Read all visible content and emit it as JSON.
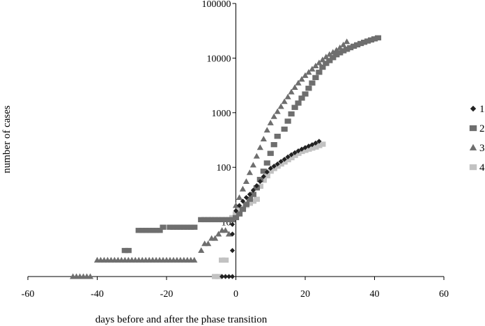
{
  "chart_data": {
    "type": "scatter",
    "title": "",
    "xlabel": "days before and after the phase transition",
    "ylabel": "number of cases",
    "xlim": [
      -60,
      60
    ],
    "x_ticks": [
      -60,
      -40,
      -20,
      0,
      20,
      40,
      60
    ],
    "x_tick_labels": [
      "-60",
      "-40",
      "-20",
      "0",
      "20",
      "40",
      "60"
    ],
    "y_scale": "log",
    "ylim": [
      1,
      100000
    ],
    "y_ticks": [
      10,
      100,
      1000,
      10000,
      100000
    ],
    "y_tick_labels": [
      "10",
      "100",
      "1000",
      "10000",
      "100000"
    ],
    "grid": false,
    "legend": "right",
    "series": [
      {
        "name": "1",
        "marker": "diamond",
        "color": "#222222",
        "points": [
          [
            -4,
            1
          ],
          [
            -3,
            1
          ],
          [
            -2,
            1
          ],
          [
            -1,
            1
          ],
          [
            -1,
            3
          ],
          [
            -1,
            6
          ],
          [
            -1,
            9
          ],
          [
            0,
            16
          ],
          [
            1,
            20
          ],
          [
            2,
            24
          ],
          [
            3,
            28
          ],
          [
            4,
            32
          ],
          [
            5,
            38
          ],
          [
            6,
            46
          ],
          [
            7,
            55
          ],
          [
            8,
            68
          ],
          [
            9,
            82
          ],
          [
            10,
            96
          ],
          [
            11,
            105
          ],
          [
            12,
            115
          ],
          [
            13,
            128
          ],
          [
            14,
            140
          ],
          [
            15,
            155
          ],
          [
            16,
            170
          ],
          [
            17,
            185
          ],
          [
            18,
            200
          ],
          [
            19,
            215
          ],
          [
            20,
            230
          ],
          [
            21,
            245
          ],
          [
            22,
            260
          ],
          [
            23,
            278
          ],
          [
            24,
            300
          ]
        ]
      },
      {
        "name": "2",
        "marker": "square",
        "color": "#6e6e6e",
        "points": [
          [
            -32,
            3
          ],
          [
            -31,
            3
          ],
          [
            -28,
            7
          ],
          [
            -27,
            7
          ],
          [
            -26,
            7
          ],
          [
            -25,
            7
          ],
          [
            -24,
            7
          ],
          [
            -23,
            7
          ],
          [
            -22,
            7
          ],
          [
            -21,
            8
          ],
          [
            -19,
            8
          ],
          [
            -18,
            8
          ],
          [
            -17,
            8
          ],
          [
            -16,
            8
          ],
          [
            -15,
            8
          ],
          [
            -14,
            8
          ],
          [
            -13,
            8
          ],
          [
            -12,
            8
          ],
          [
            -10,
            11
          ],
          [
            -9,
            11
          ],
          [
            -8,
            11
          ],
          [
            -7,
            11
          ],
          [
            -6,
            11
          ],
          [
            -5,
            11
          ],
          [
            -4,
            11
          ],
          [
            -3,
            11
          ],
          [
            -2,
            11
          ],
          [
            -1,
            11
          ],
          [
            0,
            12
          ],
          [
            1,
            14
          ],
          [
            2,
            17
          ],
          [
            3,
            21
          ],
          [
            4,
            26
          ],
          [
            5,
            32
          ],
          [
            6,
            42
          ],
          [
            7,
            60
          ],
          [
            8,
            85
          ],
          [
            9,
            120
          ],
          [
            10,
            180
          ],
          [
            11,
            260
          ],
          [
            12,
            370
          ],
          [
            14,
            500
          ],
          [
            15,
            700
          ],
          [
            16,
            950
          ],
          [
            17,
            1250
          ],
          [
            18,
            1500
          ],
          [
            19,
            1850
          ],
          [
            20,
            2200
          ],
          [
            21,
            2800
          ],
          [
            22,
            3500
          ],
          [
            23,
            4400
          ],
          [
            24,
            5500
          ],
          [
            25,
            6800
          ],
          [
            26,
            8000
          ],
          [
            27,
            9000
          ],
          [
            28,
            10200
          ],
          [
            29,
            11500
          ],
          [
            30,
            12500
          ],
          [
            31,
            13600
          ],
          [
            32,
            14500
          ],
          [
            33,
            15500
          ],
          [
            34,
            16500
          ],
          [
            35,
            17500
          ],
          [
            36,
            18500
          ],
          [
            37,
            19500
          ],
          [
            38,
            20500
          ],
          [
            39,
            21500
          ],
          [
            40,
            22500
          ],
          [
            41,
            23500
          ]
        ]
      },
      {
        "name": "3",
        "marker": "triangle",
        "color": "#6e6e6e",
        "points": [
          [
            -47,
            1
          ],
          [
            -46,
            1
          ],
          [
            -45,
            1
          ],
          [
            -44,
            1
          ],
          [
            -43,
            1
          ],
          [
            -42,
            1
          ],
          [
            -40,
            2
          ],
          [
            -39,
            2
          ],
          [
            -38,
            2
          ],
          [
            -37,
            2
          ],
          [
            -36,
            2
          ],
          [
            -35,
            2
          ],
          [
            -34,
            2
          ],
          [
            -33,
            2
          ],
          [
            -32,
            2
          ],
          [
            -31,
            2
          ],
          [
            -30,
            2
          ],
          [
            -29,
            2
          ],
          [
            -28,
            2
          ],
          [
            -27,
            2
          ],
          [
            -26,
            2
          ],
          [
            -25,
            2
          ],
          [
            -24,
            2
          ],
          [
            -23,
            2
          ],
          [
            -22,
            2
          ],
          [
            -21,
            2
          ],
          [
            -20,
            2
          ],
          [
            -19,
            2
          ],
          [
            -18,
            2
          ],
          [
            -17,
            2
          ],
          [
            -16,
            2
          ],
          [
            -15,
            2
          ],
          [
            -14,
            2
          ],
          [
            -13,
            2
          ],
          [
            -12,
            2
          ],
          [
            -10,
            3
          ],
          [
            -9,
            4
          ],
          [
            -8,
            4
          ],
          [
            -7,
            5
          ],
          [
            -6,
            5
          ],
          [
            -5,
            6
          ],
          [
            -4,
            7
          ],
          [
            -3,
            7
          ],
          [
            -2,
            6
          ],
          [
            0,
            20
          ],
          [
            1,
            28
          ],
          [
            2,
            40
          ],
          [
            3,
            55
          ],
          [
            4,
            80
          ],
          [
            5,
            110
          ],
          [
            6,
            160
          ],
          [
            7,
            230
          ],
          [
            8,
            330
          ],
          [
            9,
            480
          ],
          [
            10,
            650
          ],
          [
            11,
            850
          ],
          [
            12,
            1050
          ],
          [
            13,
            1300
          ],
          [
            14,
            1600
          ],
          [
            15,
            1950
          ],
          [
            16,
            2400
          ],
          [
            17,
            2900
          ],
          [
            18,
            3500
          ],
          [
            19,
            4100
          ],
          [
            20,
            4800
          ],
          [
            21,
            5500
          ],
          [
            22,
            6300
          ],
          [
            23,
            7200
          ],
          [
            24,
            8200
          ],
          [
            25,
            9300
          ],
          [
            26,
            10500
          ],
          [
            27,
            11700
          ],
          [
            28,
            12800
          ],
          [
            29,
            14000
          ],
          [
            30,
            15500
          ],
          [
            31,
            17500
          ],
          [
            32,
            20000
          ]
        ]
      },
      {
        "name": "4",
        "marker": "square",
        "color": "#c2c2c2",
        "points": [
          [
            -6,
            1
          ],
          [
            -5,
            1
          ],
          [
            -4,
            2
          ],
          [
            -3,
            2
          ],
          [
            -1,
            12
          ],
          [
            0,
            14
          ],
          [
            1,
            16
          ],
          [
            2,
            18
          ],
          [
            3,
            20
          ],
          [
            4,
            22
          ],
          [
            5,
            24
          ],
          [
            6,
            26
          ],
          [
            7,
            45
          ],
          [
            8,
            58
          ],
          [
            9,
            70
          ],
          [
            10,
            85
          ],
          [
            11,
            95
          ],
          [
            12,
            105
          ],
          [
            13,
            115
          ],
          [
            14,
            125
          ],
          [
            15,
            138
          ],
          [
            16,
            150
          ],
          [
            17,
            165
          ],
          [
            18,
            180
          ],
          [
            19,
            195
          ],
          [
            20,
            205
          ],
          [
            21,
            215
          ],
          [
            22,
            225
          ],
          [
            23,
            235
          ],
          [
            24,
            250
          ],
          [
            25,
            265
          ]
        ]
      }
    ]
  }
}
